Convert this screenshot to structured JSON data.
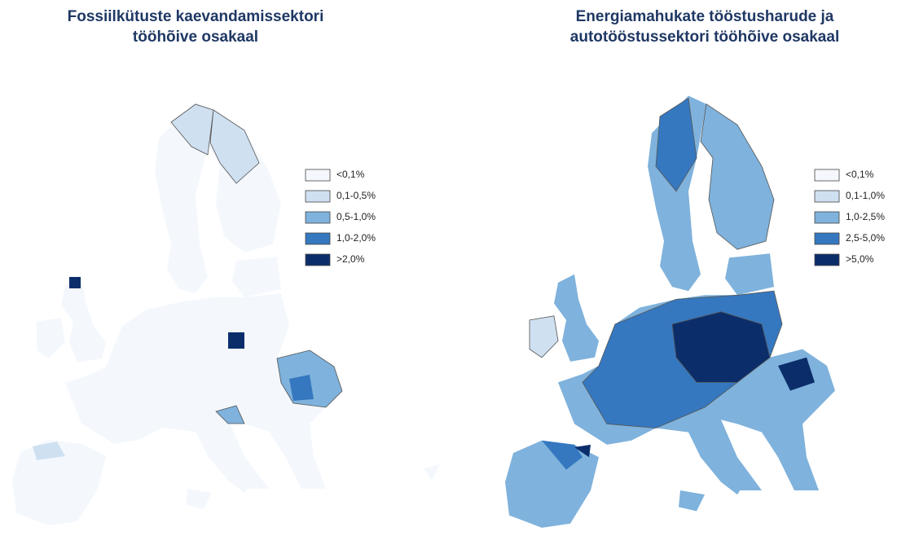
{
  "maps": [
    {
      "title": [
        "Fossiilkütuste kaevandamissektori",
        "tööhõive osakaal"
      ],
      "legend": [
        {
          "label": "<0,1%",
          "color": "#f4f8fd"
        },
        {
          "label": "0,1-0,5%",
          "color": "#cfe0f1"
        },
        {
          "label": "0,5-1,0%",
          "color": "#7fb2dc"
        },
        {
          "label": "1,0-2,0%",
          "color": "#3578c0"
        },
        {
          "label": ">2,0%",
          "color": "#0b2e6b"
        }
      ]
    },
    {
      "title": [
        "Energiamahukate tööstusharude ja",
        "autotööstussektori tööhõive osakaal"
      ],
      "legend": [
        {
          "label": "<0,1%",
          "color": "#f4f8fd"
        },
        {
          "label": "0,1-1,0%",
          "color": "#cfe0f1"
        },
        {
          "label": "1,0-2,5%",
          "color": "#7fb2dc"
        },
        {
          "label": "2,5-5,0%",
          "color": "#3578c0"
        },
        {
          "label": ">5,0%",
          "color": "#0b2e6b"
        }
      ]
    }
  ]
}
